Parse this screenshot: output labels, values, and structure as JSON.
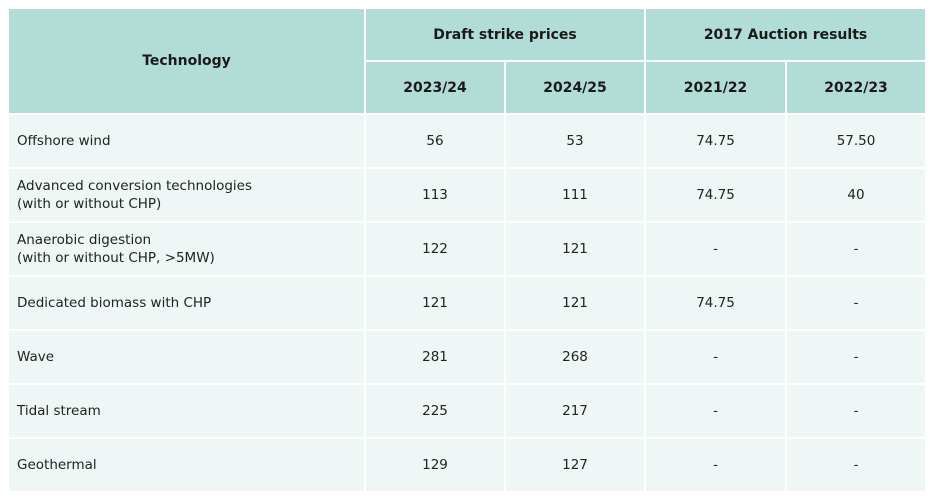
{
  "table": {
    "header": {
      "technology": "Technology",
      "group_draft": "Draft strike prices",
      "group_auction": "2017 Auction results",
      "years": [
        "2023/24",
        "2024/25",
        "2021/22",
        "2022/23"
      ]
    },
    "rows": [
      {
        "tech": [
          "Offshore wind"
        ],
        "values": [
          "56",
          "53",
          "74.75",
          "57.50"
        ]
      },
      {
        "tech": [
          "Advanced conversion technologies",
          "(with or without CHP)"
        ],
        "values": [
          "113",
          "111",
          "74.75",
          "40"
        ]
      },
      {
        "tech": [
          "Anaerobic digestion",
          "(with or without CHP, >5MW)"
        ],
        "values": [
          "122",
          "121",
          "-",
          "-"
        ]
      },
      {
        "tech": [
          "Dedicated biomass with CHP"
        ],
        "values": [
          "121",
          "121",
          "74.75",
          "-"
        ]
      },
      {
        "tech": [
          "Wave"
        ],
        "values": [
          "281",
          "268",
          "-",
          "-"
        ]
      },
      {
        "tech": [
          "Tidal stream"
        ],
        "values": [
          "225",
          "217",
          "-",
          "-"
        ]
      },
      {
        "tech": [
          "Geothermal"
        ],
        "values": [
          "129",
          "127",
          "-",
          "-"
        ]
      }
    ]
  }
}
